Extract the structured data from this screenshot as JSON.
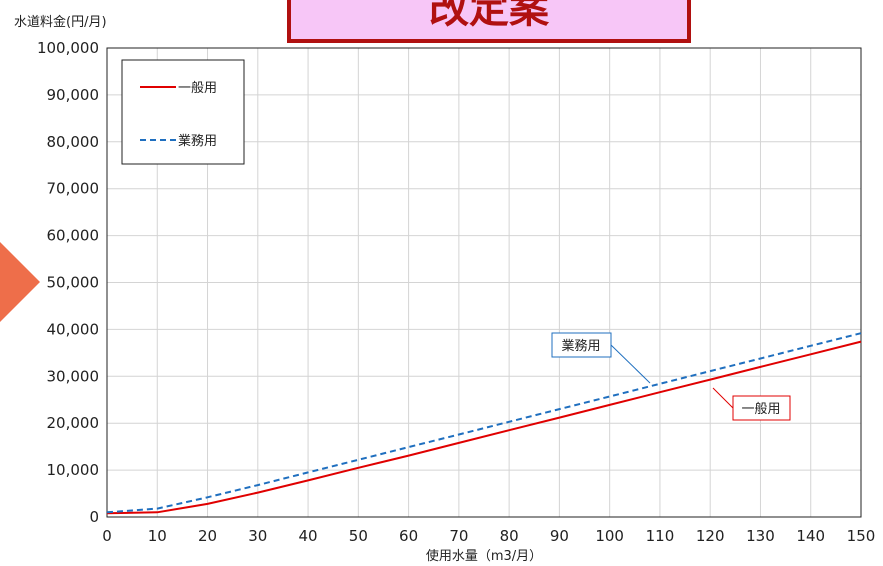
{
  "banner": {
    "text": "改定案",
    "fill": "#f7c6f7",
    "border": "#b01010"
  },
  "arrow": {
    "color": "#ee6e4a"
  },
  "chart_data": {
    "type": "line",
    "title": "",
    "ylabel": "水道料金(円/月)",
    "xlabel": "使用水量（m3/月）",
    "xlim": [
      0,
      150
    ],
    "ylim": [
      0,
      100000
    ],
    "xticks": [
      "0",
      "10",
      "20",
      "30",
      "40",
      "50",
      "60",
      "70",
      "80",
      "90",
      "100",
      "110",
      "120",
      "130",
      "140",
      "150"
    ],
    "yticks": [
      "0",
      "10,000",
      "20,000",
      "30,000",
      "40,000",
      "50,000",
      "60,000",
      "70,000",
      "80,000",
      "90,000",
      "100,000"
    ],
    "grid": true,
    "legend_position": "top-left",
    "series": [
      {
        "name": "一般用",
        "color": "#e00000",
        "dash": "solid",
        "x": [
          0,
          10,
          20,
          30,
          40,
          50,
          60,
          70,
          80,
          90,
          100,
          110,
          120,
          130,
          140,
          150
        ],
        "y": [
          800,
          1000,
          2800,
          5200,
          7800,
          10500,
          13100,
          15800,
          18500,
          21200,
          23900,
          26600,
          29300,
          32000,
          34700,
          37400
        ],
        "callout": "一般用"
      },
      {
        "name": "業務用",
        "color": "#1f6fbf",
        "dash": "dashed",
        "x": [
          0,
          10,
          20,
          30,
          40,
          50,
          60,
          70,
          80,
          90,
          100,
          110,
          120,
          130,
          140,
          150
        ],
        "y": [
          1000,
          1800,
          4200,
          6800,
          9500,
          12200,
          14900,
          17600,
          20300,
          23000,
          25700,
          28400,
          31100,
          33800,
          36500,
          39200
        ],
        "callout": "業務用"
      }
    ]
  }
}
